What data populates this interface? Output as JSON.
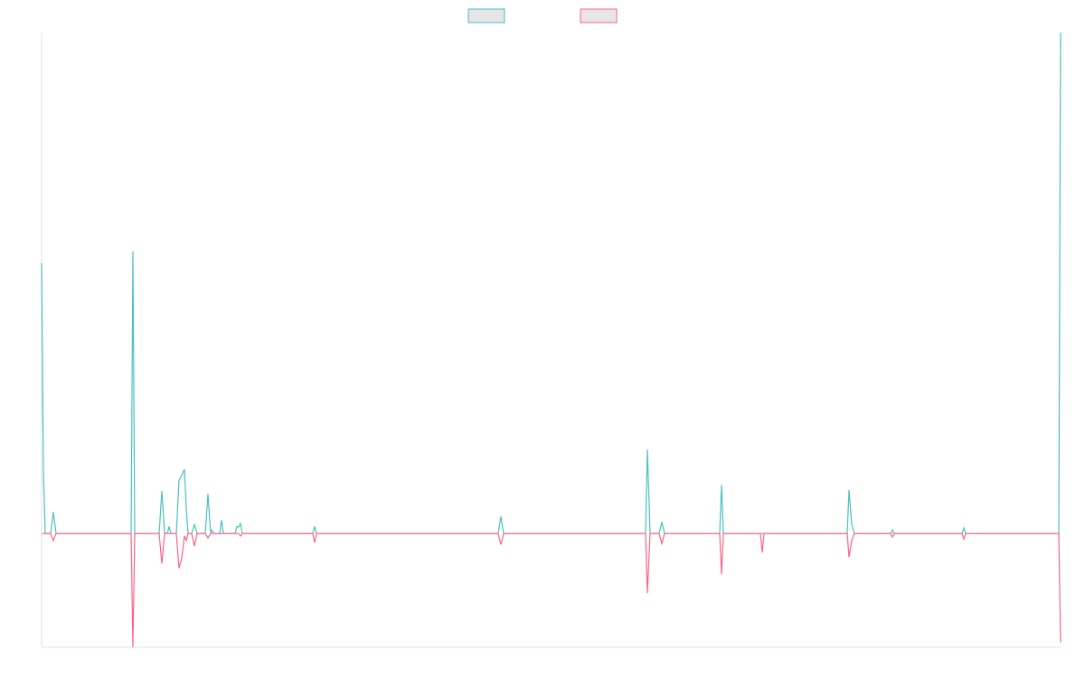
{
  "chart_data": {
    "type": "line",
    "x": [
      46,
      48,
      50,
      56,
      59,
      62,
      145,
      147,
      149,
      176,
      179,
      182,
      185,
      187,
      189,
      195,
      198,
      201,
      204,
      206,
      208,
      212,
      215,
      218,
      227,
      230,
      233,
      234,
      237,
      243,
      245,
      247,
      260,
      262,
      264,
      266,
      268,
      346,
      348,
      350,
      551,
      554,
      557,
      714,
      716,
      719,
      729,
      732,
      735,
      796,
      798,
      800,
      841,
      843,
      845,
      937,
      939,
      942,
      945,
      985,
      987,
      989,
      1064,
      1066,
      1068,
      1171,
      1173
    ],
    "series": [
      {
        "color": "#4bc0c0",
        "values": [
          54,
          12.6,
          0,
          0,
          4.3,
          0,
          0,
          56.3,
          0,
          0,
          8.5,
          0,
          0,
          1.4,
          0,
          0,
          10.6,
          11.6,
          12.8,
          5,
          0,
          0,
          1.8,
          0,
          0,
          7.9,
          0,
          0.7,
          0,
          0,
          2.7,
          0,
          0,
          1.4,
          1.3,
          2,
          0,
          0,
          1.4,
          0,
          0,
          3.4,
          0,
          0,
          16.8,
          0,
          0,
          2.3,
          0,
          0,
          9.7,
          0,
          0,
          0,
          0,
          0,
          8.7,
          1.8,
          0,
          0,
          0.7,
          0,
          0,
          1.1,
          0,
          0,
          100
        ]
      },
      {
        "color": "#ff6384",
        "values": [
          0,
          0,
          0,
          0,
          -1.4,
          0,
          0,
          -22.7,
          0,
          0,
          -6,
          0,
          0,
          0,
          0,
          0,
          -6.9,
          -4.9,
          -0.5,
          -1.4,
          0,
          0,
          -2.5,
          0,
          0,
          -0.9,
          0,
          0,
          0,
          0,
          0,
          0,
          0,
          0,
          0,
          -0.5,
          0,
          0,
          -1.8,
          0,
          0,
          -2.2,
          0,
          0,
          -11.9,
          0,
          0,
          -2,
          0,
          0,
          -8.1,
          0,
          0,
          -3.8,
          0,
          0,
          -4.7,
          -1.4,
          0,
          0,
          -0.7,
          0,
          0,
          -1.1,
          0,
          0,
          -21.7
        ]
      }
    ],
    "xlim": [
      46,
      1173
    ],
    "ylim": [
      -22.7,
      100
    ]
  }
}
